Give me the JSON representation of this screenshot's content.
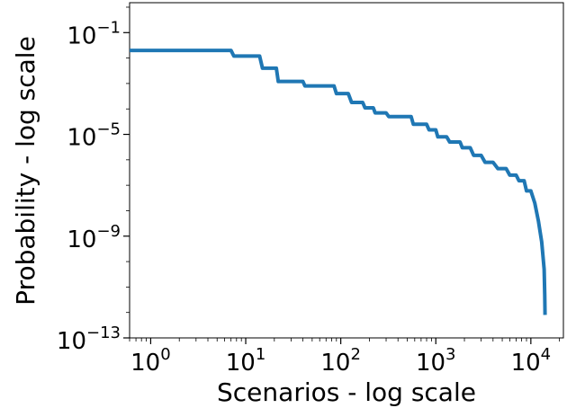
{
  "chart_data": {
    "type": "line",
    "title": "",
    "xlabel": "Scenarios - log scale",
    "ylabel": "Probability - log scale",
    "xscale": "log",
    "yscale": "log",
    "xlim": [
      0.6,
      22000
    ],
    "ylim": [
      1e-13,
      1.5
    ],
    "grid": false,
    "x_ticks": [
      {
        "value": 1,
        "base": "10",
        "exp": "0"
      },
      {
        "value": 10,
        "base": "10",
        "exp": "1"
      },
      {
        "value": 100,
        "base": "10",
        "exp": "2"
      },
      {
        "value": 1000,
        "base": "10",
        "exp": "3"
      },
      {
        "value": 10000,
        "base": "10",
        "exp": "4"
      }
    ],
    "y_ticks": [
      {
        "value": 0.1,
        "base": "10",
        "exp": "−1"
      },
      {
        "value": 1e-05,
        "base": "10",
        "exp": "−5"
      },
      {
        "value": 1e-09,
        "base": "10",
        "exp": "−9"
      },
      {
        "value": 1e-13,
        "base": "10",
        "exp": "−13"
      }
    ],
    "series": [
      {
        "color": "#1f77b4",
        "x": [
          0.6,
          7,
          7.5,
          14,
          15,
          21,
          22,
          40,
          42,
          85,
          90,
          120,
          130,
          170,
          180,
          220,
          230,
          300,
          320,
          550,
          580,
          800,
          850,
          1000,
          1050,
          1300,
          1400,
          1800,
          1900,
          2300,
          2500,
          3000,
          3300,
          4000,
          4500,
          5500,
          6000,
          7000,
          7500,
          8500,
          9000,
          10000,
          11000,
          12000,
          13000,
          13800,
          14000,
          14100
        ],
        "y": [
          0.02,
          0.02,
          0.012,
          0.012,
          0.004,
          0.004,
          0.0012,
          0.0012,
          0.0008,
          0.0008,
          0.0004,
          0.0004,
          0.00018,
          0.00018,
          0.00011,
          0.00011,
          7e-05,
          7e-05,
          5e-05,
          5e-05,
          2.5e-05,
          2.5e-05,
          1.5e-05,
          1.5e-05,
          8e-06,
          8e-06,
          5e-06,
          5e-06,
          3e-06,
          3e-06,
          1.5e-06,
          1.5e-06,
          8e-07,
          8e-07,
          4.5e-07,
          4.5e-07,
          2.5e-07,
          2.5e-07,
          1.5e-07,
          1.5e-07,
          6e-08,
          6e-08,
          2e-08,
          4e-09,
          6e-10,
          5e-11,
          5e-12,
          8e-13
        ]
      }
    ]
  }
}
